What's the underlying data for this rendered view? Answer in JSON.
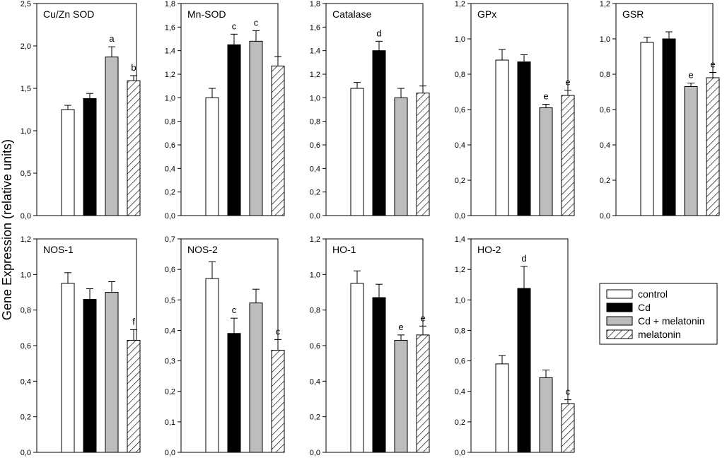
{
  "y_axis_label": "Gene Expression (relative units)",
  "colors": {
    "control": "#ffffff",
    "cd": "#000000",
    "cd_melatonin": "#bdbdbd",
    "melatonin_hatch": "#000000"
  },
  "legend": {
    "entries": [
      {
        "name": "control",
        "fill": "white"
      },
      {
        "name": "Cd",
        "fill": "black"
      },
      {
        "name": "Cd + melatonin",
        "fill": "gray"
      },
      {
        "name": "melatonin",
        "fill": "hatch"
      }
    ]
  },
  "chart_data": [
    {
      "type": "bar",
      "title": "Cu/Zn SOD",
      "categories": [
        "control",
        "Cd",
        "Cd + melatonin",
        "melatonin"
      ],
      "values": [
        1.25,
        1.38,
        1.87,
        1.59
      ],
      "errors": [
        0.05,
        0.06,
        0.12,
        0.06
      ],
      "labels": [
        "",
        "",
        "a",
        "b"
      ],
      "ylim": [
        0,
        2.5
      ],
      "ticks": [
        "0,0",
        "0,5",
        "1,0",
        "1,5",
        "2,0",
        "2,5"
      ]
    },
    {
      "type": "bar",
      "title": "Mn-SOD",
      "categories": [
        "control",
        "Cd",
        "Cd + melatonin",
        "melatonin"
      ],
      "values": [
        1.0,
        1.45,
        1.48,
        1.27
      ],
      "errors": [
        0.08,
        0.09,
        0.09,
        0.08
      ],
      "labels": [
        "",
        "c",
        "c",
        ""
      ],
      "ylim": [
        0,
        1.8
      ],
      "ticks": [
        "0,0",
        "0,2",
        "0,4",
        "0,6",
        "0,8",
        "1,0",
        "1,2",
        "1,4",
        "1,6",
        "1,8"
      ]
    },
    {
      "type": "bar",
      "title": "Catalase",
      "categories": [
        "control",
        "Cd",
        "Cd + melatonin",
        "melatonin"
      ],
      "values": [
        1.08,
        1.4,
        1.0,
        1.04
      ],
      "errors": [
        0.05,
        0.08,
        0.08,
        0.06
      ],
      "labels": [
        "",
        "d",
        "",
        ""
      ],
      "ylim": [
        0,
        1.8
      ],
      "ticks": [
        "0,0",
        "0,2",
        "0,4",
        "0,6",
        "0,8",
        "1,0",
        "1,2",
        "1,4",
        "1,6",
        "1,8"
      ]
    },
    {
      "type": "bar",
      "title": "GPx",
      "categories": [
        "control",
        "Cd",
        "Cd + melatonin",
        "melatonin"
      ],
      "values": [
        0.88,
        0.87,
        0.61,
        0.68
      ],
      "errors": [
        0.06,
        0.04,
        0.02,
        0.03
      ],
      "labels": [
        "",
        "",
        "e",
        "e"
      ],
      "ylim": [
        0,
        1.2
      ],
      "ticks": [
        "0,0",
        "0,2",
        "0,4",
        "0,6",
        "0,8",
        "1,0",
        "1,2"
      ]
    },
    {
      "type": "bar",
      "title": "GSR",
      "categories": [
        "control",
        "Cd",
        "Cd + melatonin",
        "melatonin"
      ],
      "values": [
        0.98,
        1.0,
        0.73,
        0.78
      ],
      "errors": [
        0.03,
        0.04,
        0.02,
        0.03
      ],
      "labels": [
        "",
        "",
        "e",
        "e"
      ],
      "ylim": [
        0,
        1.2
      ],
      "ticks": [
        "0,0",
        "0,2",
        "0,4",
        "0,6",
        "0,8",
        "1,0",
        "1,2"
      ]
    },
    {
      "type": "bar",
      "title": "NOS-1",
      "categories": [
        "control",
        "Cd",
        "Cd + melatonin",
        "melatonin"
      ],
      "values": [
        0.95,
        0.86,
        0.9,
        0.63
      ],
      "errors": [
        0.06,
        0.06,
        0.06,
        0.06
      ],
      "labels": [
        "",
        "",
        "",
        "f"
      ],
      "ylim": [
        0,
        1.2
      ],
      "ticks": [
        "0,0",
        "0,2",
        "0,4",
        "0,6",
        "0,8",
        "1,0",
        "1,2"
      ]
    },
    {
      "type": "bar",
      "title": "NOS-2",
      "categories": [
        "control",
        "Cd",
        "Cd + melatonin",
        "melatonin"
      ],
      "values": [
        0.57,
        0.39,
        0.49,
        0.335
      ],
      "errors": [
        0.055,
        0.05,
        0.045,
        0.035
      ],
      "labels": [
        "",
        "c",
        "",
        "c"
      ],
      "ylim": [
        0,
        0.7
      ],
      "ticks": [
        "0,0",
        "0,1",
        "0,2",
        "0,3",
        "0,4",
        "0,5",
        "0,6",
        "0,7"
      ]
    },
    {
      "type": "bar",
      "title": "HO-1",
      "categories": [
        "control",
        "Cd",
        "Cd + melatonin",
        "melatonin"
      ],
      "values": [
        0.95,
        0.87,
        0.63,
        0.66
      ],
      "errors": [
        0.07,
        0.075,
        0.03,
        0.05
      ],
      "labels": [
        "",
        "",
        "e",
        "e"
      ],
      "ylim": [
        0,
        1.2
      ],
      "ticks": [
        "0,0",
        "0,2",
        "0,4",
        "0,6",
        "0,8",
        "1,0",
        "1,2"
      ]
    },
    {
      "type": "bar",
      "title": "HO-2",
      "categories": [
        "control",
        "Cd",
        "Cd + melatonin",
        "melatonin"
      ],
      "values": [
        0.58,
        1.075,
        0.49,
        0.32
      ],
      "errors": [
        0.055,
        0.145,
        0.05,
        0.025
      ],
      "labels": [
        "",
        "d",
        "",
        "c"
      ],
      "ylim": [
        0,
        1.4
      ],
      "ticks": [
        "0,0",
        "0,2",
        "0,4",
        "0,6",
        "0,8",
        "1,0",
        "1,2",
        "1,4"
      ]
    }
  ]
}
